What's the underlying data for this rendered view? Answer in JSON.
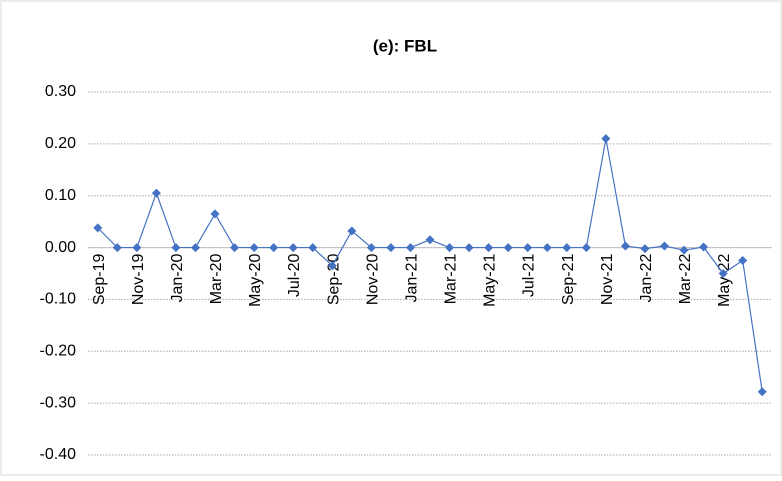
{
  "chart_data": {
    "type": "line",
    "title": "(e): FBL",
    "categories": [
      "Sep-19",
      null,
      "Nov-19",
      null,
      "Jan-20",
      null,
      "Mar-20",
      null,
      "May-20",
      null,
      "Jul-20",
      null,
      "Sep-20",
      null,
      "Nov-20",
      null,
      "Jan-21",
      null,
      "Mar-21",
      null,
      "May-21",
      null,
      "Jul-21",
      null,
      "Sep-21",
      null,
      "Nov-21",
      null,
      "Jan-22",
      null,
      "Mar-22",
      null,
      "May-22",
      null,
      null
    ],
    "series": [
      {
        "name": "FBL",
        "color": "#4472c4",
        "values": [
          0.038,
          0,
          0,
          0.105,
          0,
          0,
          0.065,
          0,
          0,
          0,
          0,
          0,
          -0.035,
          0.032,
          0,
          0,
          0,
          0.015,
          0,
          0,
          0,
          0,
          0,
          0,
          0,
          0,
          0.21,
          0.003,
          -0.002,
          0.003,
          -0.005,
          0.001,
          -0.05,
          -0.025,
          -0.278
        ]
      }
    ],
    "ylim": [
      -0.4,
      0.3
    ],
    "yticks": [
      {
        "value": -0.4,
        "label": "-0.40"
      },
      {
        "value": -0.3,
        "label": "-0.30"
      },
      {
        "value": -0.2,
        "label": "-0.20"
      },
      {
        "value": -0.1,
        "label": "-0.10"
      },
      {
        "value": 0,
        "label": "0.00"
      },
      {
        "value": 0.1,
        "label": "0.10"
      },
      {
        "value": 0.2,
        "label": "0.20"
      },
      {
        "value": 0.3,
        "label": "0.30"
      }
    ],
    "grid": true
  }
}
